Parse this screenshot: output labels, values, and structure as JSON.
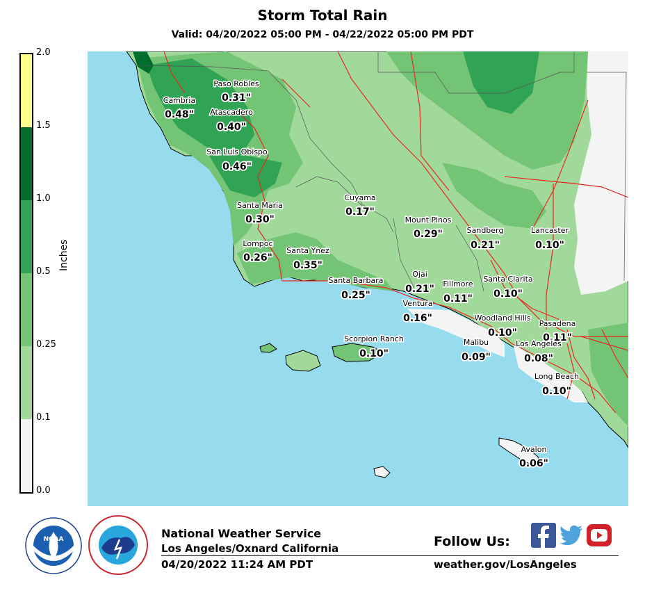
{
  "header": {
    "title": "Storm Total Rain",
    "subtitle": "Valid: 04/20/2022 05:00 PM - 04/22/2022 05:00 PM PDT"
  },
  "legend": {
    "label": "Inches",
    "ticks": [
      "2.0",
      "1.5",
      "1.0",
      "0.5",
      "0.25",
      "0.1",
      "0.0"
    ],
    "bins": [
      {
        "from": 0.0,
        "to": 0.1,
        "color": "#f4f4f4"
      },
      {
        "from": 0.1,
        "to": 0.25,
        "color": "#a1d99b"
      },
      {
        "from": 0.25,
        "to": 0.5,
        "color": "#74c476"
      },
      {
        "from": 0.5,
        "to": 1.0,
        "color": "#31a354"
      },
      {
        "from": 1.0,
        "to": 1.5,
        "color": "#006d2c"
      },
      {
        "from": 1.5,
        "to": 2.0,
        "color": "#ffff8c"
      }
    ]
  },
  "map": {
    "ocean_color": "#97dbef",
    "road_color": "#e8281e",
    "stations": [
      {
        "name": "Paso Robles",
        "value": "0.31\""
      },
      {
        "name": "Cambria",
        "value": "0.48\""
      },
      {
        "name": "Atascadero",
        "value": "0.40\""
      },
      {
        "name": "San Luis Obispo",
        "value": "0.46\""
      },
      {
        "name": "Cuyama",
        "value": "0.17\""
      },
      {
        "name": "Santa Maria",
        "value": "0.30\""
      },
      {
        "name": "Mount Pinos",
        "value": "0.29\""
      },
      {
        "name": "Sandberg",
        "value": "0.21\""
      },
      {
        "name": "Lancaster",
        "value": "0.10\""
      },
      {
        "name": "Lompoc",
        "value": "0.26\""
      },
      {
        "name": "Santa Ynez",
        "value": "0.35\""
      },
      {
        "name": "Ojai",
        "value": "0.21\""
      },
      {
        "name": "Santa Barbara",
        "value": "0.25\""
      },
      {
        "name": "Fillmore",
        "value": "0.11\""
      },
      {
        "name": "Santa Clarita",
        "value": "0.10\""
      },
      {
        "name": "Ventura",
        "value": "0.16\""
      },
      {
        "name": "Woodland Hills",
        "value": "0.10\""
      },
      {
        "name": "Pasadena",
        "value": "0.11\""
      },
      {
        "name": "Scorpion Ranch",
        "value": "0.10\""
      },
      {
        "name": "Malibu",
        "value": "0.09\""
      },
      {
        "name": "Los Angeles",
        "value": "0.08\""
      },
      {
        "name": "Long Beach",
        "value": "0.10\""
      },
      {
        "name": "Avalon",
        "value": "0.06\""
      }
    ]
  },
  "footer": {
    "agency": "National Weather Service",
    "office": "Los Angeles/Oxnard California",
    "issued": "04/20/2022 11:24 AM PDT",
    "follow": "Follow Us:",
    "url": "weather.gov/LosAngeles",
    "social_icons": [
      "facebook-icon",
      "twitter-icon",
      "youtube-icon"
    ],
    "logos": [
      "noaa-logo",
      "nws-logo"
    ]
  }
}
